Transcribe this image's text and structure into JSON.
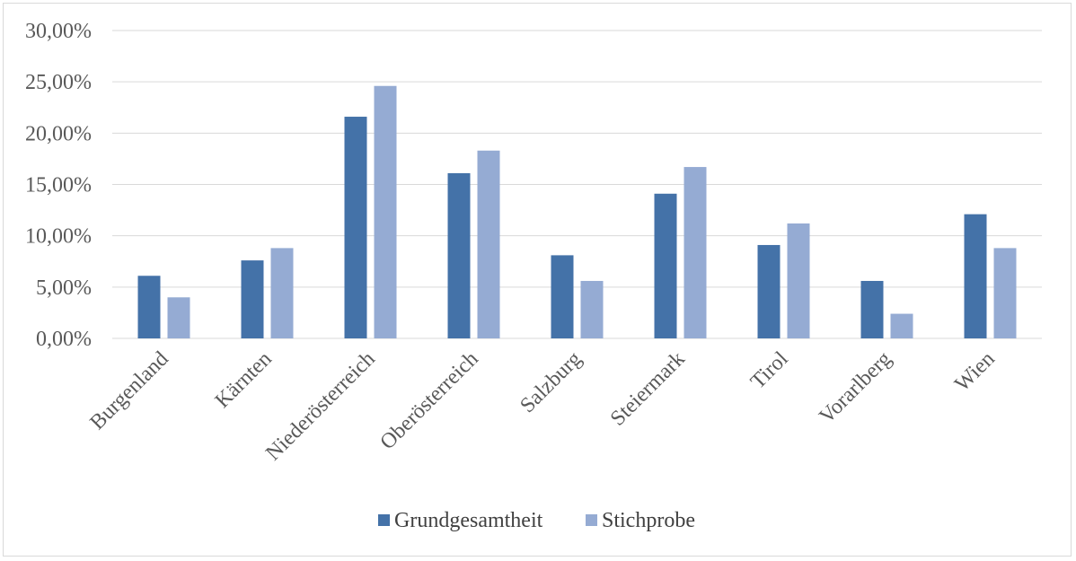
{
  "chart_data": {
    "type": "bar",
    "title": "",
    "xlabel": "",
    "ylabel": "",
    "categories": [
      "Burgenland",
      "Kärnten",
      "Niederösterreich",
      "Oberösterreich",
      "Salzburg",
      "Steiermark",
      "Tirol",
      "Vorarlberg",
      "Wien"
    ],
    "series": [
      {
        "name": "Grundgesamtheit",
        "color": "#4472a8",
        "values": [
          6.1,
          7.6,
          21.6,
          16.1,
          8.1,
          14.1,
          9.1,
          5.6,
          12.1
        ]
      },
      {
        "name": "Stichprobe",
        "color": "#95abd3",
        "values": [
          4.0,
          8.8,
          24.6,
          18.3,
          5.6,
          16.7,
          11.2,
          2.4,
          8.8
        ]
      }
    ],
    "ylim": [
      0,
      30
    ],
    "y_ticks": [
      0,
      5,
      10,
      15,
      20,
      25,
      30
    ],
    "y_tick_labels": [
      "0,00%",
      "5,00%",
      "10,00%",
      "15,00%",
      "20,00%",
      "25,00%",
      "30,00%"
    ],
    "grid": true,
    "legend_position": "bottom",
    "x_tick_rotation": "-45deg"
  }
}
